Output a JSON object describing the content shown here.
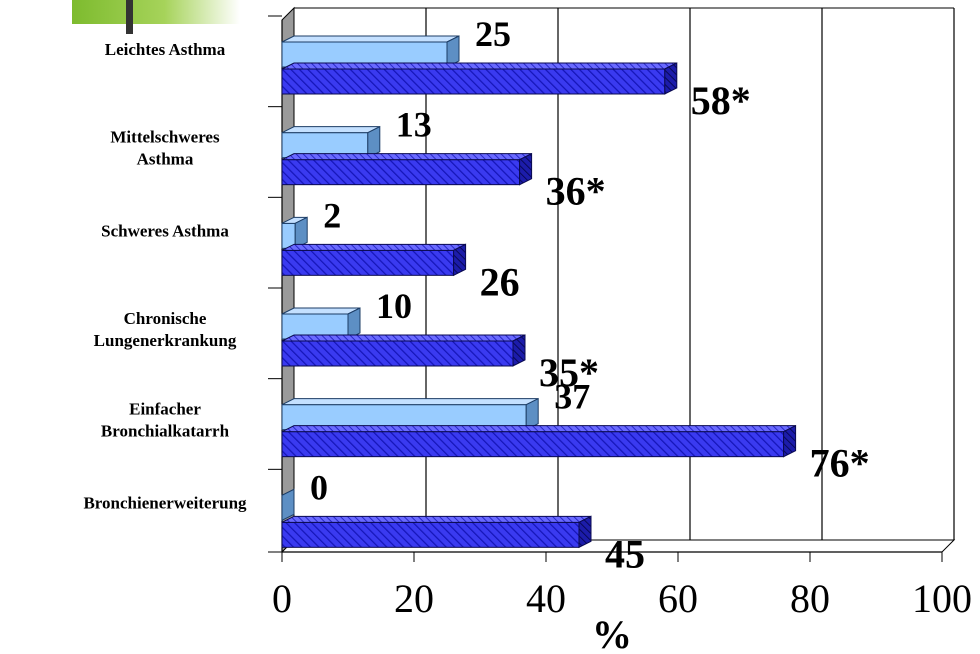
{
  "chart_data": {
    "type": "bar",
    "orientation": "horizontal",
    "categories": [
      [
        "Leichtes Asthma"
      ],
      [
        "Mittelschweres",
        "Asthma"
      ],
      [
        "Schweres Asthma"
      ],
      [
        "Chronische",
        "Lungenerkrankung"
      ],
      [
        "Einfacher",
        "Bronchialkatarrh"
      ],
      [
        "Bronchienerweiterung"
      ]
    ],
    "series": [
      {
        "color": "#99ccff",
        "values": [
          25,
          13,
          2,
          10,
          37,
          0
        ],
        "labels": [
          "25",
          "13",
          "2",
          "10",
          "37",
          "0"
        ]
      },
      {
        "color": "#3333ff",
        "pattern": "diagonal-hatch",
        "values": [
          58,
          36,
          26,
          35,
          76,
          45
        ],
        "labels": [
          "58*",
          "36*",
          "26",
          "35*",
          "76*",
          "45"
        ]
      }
    ],
    "x_ticks": [
      "0",
      "20",
      "40",
      "60",
      "80",
      "100"
    ],
    "xlim": [
      0,
      100
    ],
    "xlabel": "%",
    "ylabel": "",
    "title": "",
    "grid": "vertical",
    "legend": "none"
  },
  "decor": {
    "logo_color": "#8cc63f"
  }
}
